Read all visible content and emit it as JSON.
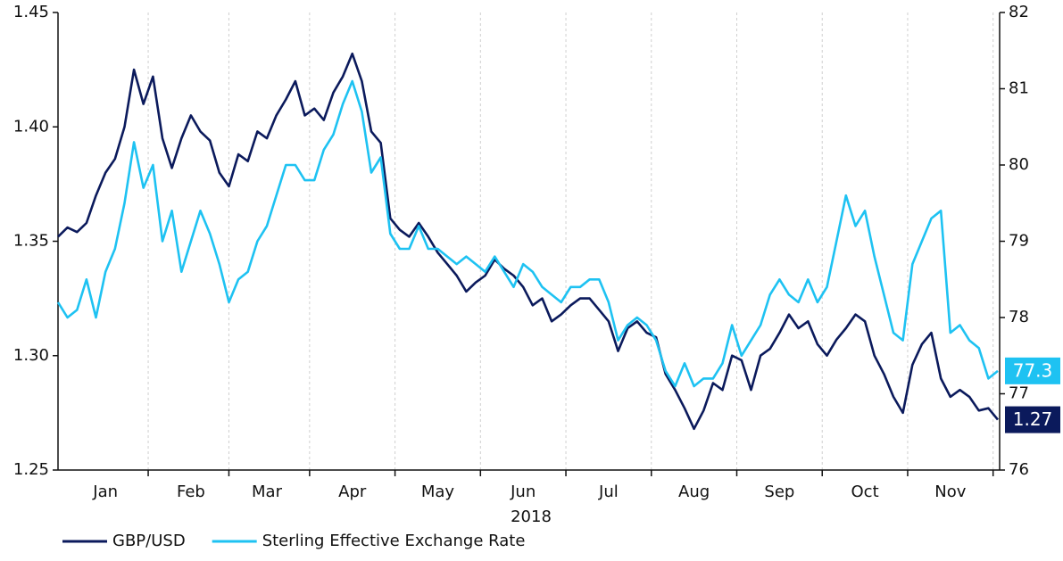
{
  "chart_data": {
    "type": "line",
    "xlabel": "2018",
    "categories": [
      null,
      null,
      null,
      null,
      null,
      "Jan",
      null,
      null,
      null,
      null,
      null,
      null,
      null,
      null,
      "Feb",
      null,
      null,
      null,
      null,
      null,
      null,
      null,
      "Mar",
      null,
      null,
      null,
      null,
      null,
      null,
      null,
      null,
      "Apr",
      null,
      null,
      null,
      null,
      null,
      null,
      null,
      null,
      "May",
      null,
      null,
      null,
      null,
      null,
      null,
      null,
      null,
      "Jun",
      null,
      null,
      null,
      null,
      null,
      null,
      null,
      null,
      "Jul",
      null,
      null,
      null,
      null,
      null,
      null,
      null,
      null,
      "Aug",
      null,
      null,
      null,
      null,
      null,
      null,
      null,
      null,
      "Sep",
      null,
      null,
      null,
      null,
      null,
      null,
      null,
      null,
      "Oct",
      null,
      null,
      null,
      null,
      null,
      null,
      null,
      null,
      "Nov",
      null,
      null,
      null,
      null,
      null
    ],
    "series": [
      {
        "name": "GBP/USD",
        "color": "#0b1a5c",
        "end_label": "1.27",
        "values": [
          1.352,
          1.356,
          1.354,
          1.358,
          1.37,
          1.38,
          1.386,
          1.4,
          1.425,
          1.41,
          1.422,
          1.395,
          1.382,
          1.395,
          1.405,
          1.398,
          1.394,
          1.38,
          1.374,
          1.388,
          1.385,
          1.398,
          1.395,
          1.405,
          1.412,
          1.42,
          1.405,
          1.408,
          1.403,
          1.415,
          1.422,
          1.432,
          1.42,
          1.398,
          1.393,
          1.36,
          1.355,
          1.352,
          1.358,
          1.352,
          1.345,
          1.34,
          1.335,
          1.328,
          1.332,
          1.335,
          1.342,
          1.338,
          1.335,
          1.33,
          1.322,
          1.325,
          1.315,
          1.318,
          1.322,
          1.325,
          1.325,
          1.32,
          1.315,
          1.302,
          1.312,
          1.315,
          1.31,
          1.308,
          1.292,
          1.285,
          1.277,
          1.268,
          1.276,
          1.288,
          1.285,
          1.3,
          1.298,
          1.285,
          1.3,
          1.303,
          1.31,
          1.318,
          1.312,
          1.315,
          1.305,
          1.3,
          1.307,
          1.312,
          1.318,
          1.315,
          1.3,
          1.292,
          1.282,
          1.275,
          1.296,
          1.305,
          1.31,
          1.29,
          1.282,
          1.285,
          1.282,
          1.276,
          1.277,
          1.272
        ]
      },
      {
        "name": "Sterling Effective Exchange Rate",
        "color": "#1ec2f2",
        "axis": "y2",
        "end_label": "77.3",
        "values": [
          78.2,
          78.0,
          78.1,
          78.5,
          78.0,
          78.6,
          78.9,
          79.5,
          80.3,
          79.7,
          80.0,
          79.0,
          79.4,
          78.6,
          79.0,
          79.4,
          79.1,
          78.7,
          78.2,
          78.5,
          78.6,
          79.0,
          79.2,
          79.6,
          80.0,
          80.0,
          79.8,
          79.8,
          80.2,
          80.4,
          80.8,
          81.1,
          80.7,
          79.9,
          80.1,
          79.1,
          78.9,
          78.9,
          79.2,
          78.9,
          78.9,
          78.8,
          78.7,
          78.8,
          78.7,
          78.6,
          78.8,
          78.6,
          78.4,
          78.7,
          78.6,
          78.4,
          78.3,
          78.2,
          78.4,
          78.4,
          78.5,
          78.5,
          78.2,
          77.7,
          77.9,
          78.0,
          77.9,
          77.7,
          77.3,
          77.1,
          77.4,
          77.1,
          77.2,
          77.2,
          77.4,
          77.9,
          77.5,
          77.7,
          77.9,
          78.3,
          78.5,
          78.3,
          78.2,
          78.5,
          78.2,
          78.4,
          79.0,
          79.6,
          79.2,
          79.4,
          78.8,
          78.3,
          77.8,
          77.7,
          78.7,
          79.0,
          79.3,
          79.4,
          77.8,
          77.9,
          77.7,
          77.6,
          77.2,
          77.3
        ]
      }
    ],
    "ylim": [
      1.25,
      1.45
    ],
    "yticks": [
      1.25,
      {
        "value": 1.3,
        "label": "1.30"
      },
      1.35,
      {
        "value": 1.4,
        "label": "1.40"
      },
      1.45
    ],
    "y2lim": [
      76,
      82
    ],
    "y2ticks": [
      76,
      77,
      78,
      79,
      80,
      81,
      82
    ],
    "grid": true,
    "legend": "bottom-left"
  }
}
